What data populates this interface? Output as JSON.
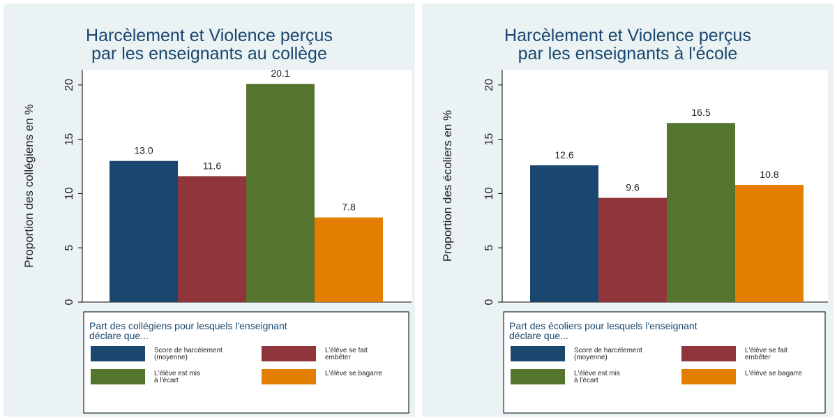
{
  "chart_data": [
    {
      "type": "bar",
      "title": "Harcèlement et Violence perçus\npar les enseignants au collège",
      "y_label": "Proportion des collégiens en %",
      "legend_title": "Part des collégiens pour lesquels l'enseignant\ndéclare que...",
      "ylim": [
        0,
        21.4
      ],
      "yticks": [
        0,
        5,
        10,
        15,
        20
      ],
      "series": [
        {
          "name": "Score de harcèlement\n(moyenne)",
          "color": "#1a476f",
          "values": [
            13.0
          ],
          "value_labels": [
            "13.0"
          ]
        },
        {
          "name": "L'élève se fait\nembêter",
          "color": "#90353b",
          "values": [
            11.6
          ],
          "value_labels": [
            "11.6"
          ]
        },
        {
          "name": "L'élève est mis\nà l'écart",
          "color": "#55752f",
          "values": [
            20.1
          ],
          "value_labels": [
            "20.1"
          ]
        },
        {
          "name": "L'élève se bagarre",
          "color": "#e37e00",
          "values": [
            7.8
          ],
          "value_labels": [
            "7.8"
          ]
        }
      ]
    },
    {
      "type": "bar",
      "title": "Harcèlement et Violence perçus\npar les enseignants à l'école",
      "y_label": "Proportion des écoliers en %",
      "legend_title": "Part des écoliers pour lesquels l'enseignant\ndéclare que...",
      "ylim": [
        0,
        21.4
      ],
      "yticks": [
        0,
        5,
        10,
        15,
        20
      ],
      "series": [
        {
          "name": "Score de harcèlement\n(moyenne)",
          "color": "#1a476f",
          "values": [
            12.6
          ],
          "value_labels": [
            "12.6"
          ]
        },
        {
          "name": "L'élève se fait\nembêter",
          "color": "#90353b",
          "values": [
            9.6
          ],
          "value_labels": [
            "9.6"
          ]
        },
        {
          "name": "L'élève est mis\nà l'écart",
          "color": "#55752f",
          "values": [
            16.5
          ],
          "value_labels": [
            "16.5"
          ]
        },
        {
          "name": "L'élève se bagarre",
          "color": "#e37e00",
          "values": [
            10.8
          ],
          "value_labels": [
            "10.8"
          ]
        }
      ]
    }
  ]
}
